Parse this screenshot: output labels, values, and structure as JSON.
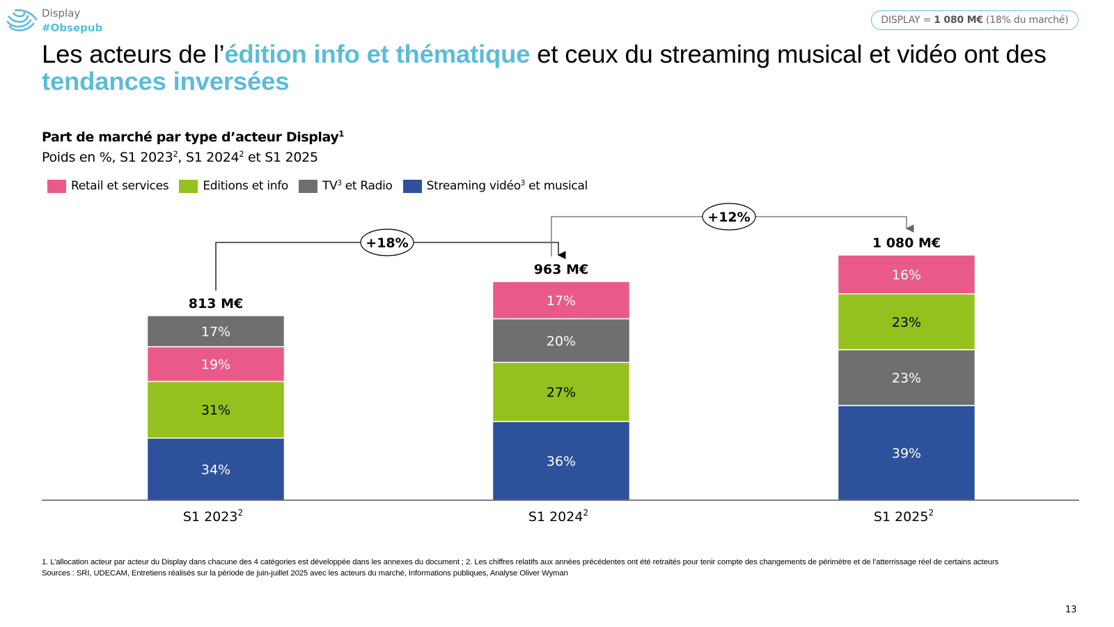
{
  "header": {
    "brand_section": "Display",
    "brand_tag": "#Obsepub",
    "logo_icon": "obsepub-wave-logo-icon",
    "market_pill": {
      "prefix": "DISPLAY =",
      "value": "1 080 M€",
      "suffix": "(18% du marché)"
    }
  },
  "title": {
    "part1": "Les acteurs de l’",
    "highlight1": "édition info et thématique",
    "part2": " et ceux du streaming musical et vidéo ont des ",
    "highlight2": "tendances inversées"
  },
  "accent_color": "#5bbcd9",
  "chart_data": {
    "type": "bar",
    "stacked": true,
    "title": "Part de marché par type d’acteur Display",
    "title_sup": "1",
    "subtitle_parts": [
      "Poids en %, S1 2023",
      "2",
      ", S1 2024",
      "2",
      " et S1 2025"
    ],
    "categories": [
      {
        "label": "S1 2023",
        "sup": "2",
        "total": 813,
        "total_label": "813 M€"
      },
      {
        "label": "S1 2024",
        "sup": "2",
        "total": 963,
        "total_label": "963 M€"
      },
      {
        "label": "S1 2025",
        "sup": "2",
        "total": 1080,
        "total_label": "1 080 M€"
      }
    ],
    "series": [
      {
        "name": "Retail et services",
        "color": "#e95a8b",
        "text_color": "#ffffff",
        "values": [
          19,
          17,
          16
        ]
      },
      {
        "name": "Editions et info",
        "color": "#95c11f",
        "text_color": "#000000",
        "values": [
          31,
          27,
          23
        ]
      },
      {
        "name": "TV et Radio",
        "name_parts": [
          "TV",
          "3",
          " et Radio"
        ],
        "color": "#6f6f6f",
        "text_color": "#ffffff",
        "values": [
          17,
          20,
          23
        ]
      },
      {
        "name": "Streaming vidéo et musical",
        "name_parts": [
          "Streaming vidéo",
          "3",
          " et musical"
        ],
        "color": "#2d519b",
        "text_color": "#ffffff",
        "values": [
          34,
          36,
          39
        ]
      }
    ],
    "legend_order": [
      0,
      1,
      2,
      3
    ],
    "stack_order_bottom_to_top": [
      [
        3,
        1,
        0,
        2
      ],
      [
        3,
        1,
        2,
        0
      ],
      [
        3,
        2,
        1,
        0
      ]
    ],
    "value_unit": "%",
    "growth_annotations": [
      {
        "from": 0,
        "to": 1,
        "label": "+18%"
      },
      {
        "from": 1,
        "to": 2,
        "label": "+12%"
      }
    ],
    "ylim": [
      0,
      1080
    ],
    "grid": false,
    "legend_position": "top-left"
  },
  "footnotes": {
    "note1": "1. L’allocation acteur par acteur du Display dans chacune des 4 catégories est développée dans les annexes du document ; 2. Les chiffres relatifs aux années précédentes ont été retraités pour tenir compte des changements de périmètre et de l’atterrissage réel de certains acteurs",
    "sources": "Sources : SRI, UDECAM, Entretiens réalisés sur la période de juin-juillet 2025 avec les acteurs du marché, Informations publiques, Analyse Oliver Wyman"
  },
  "page_number": "13"
}
